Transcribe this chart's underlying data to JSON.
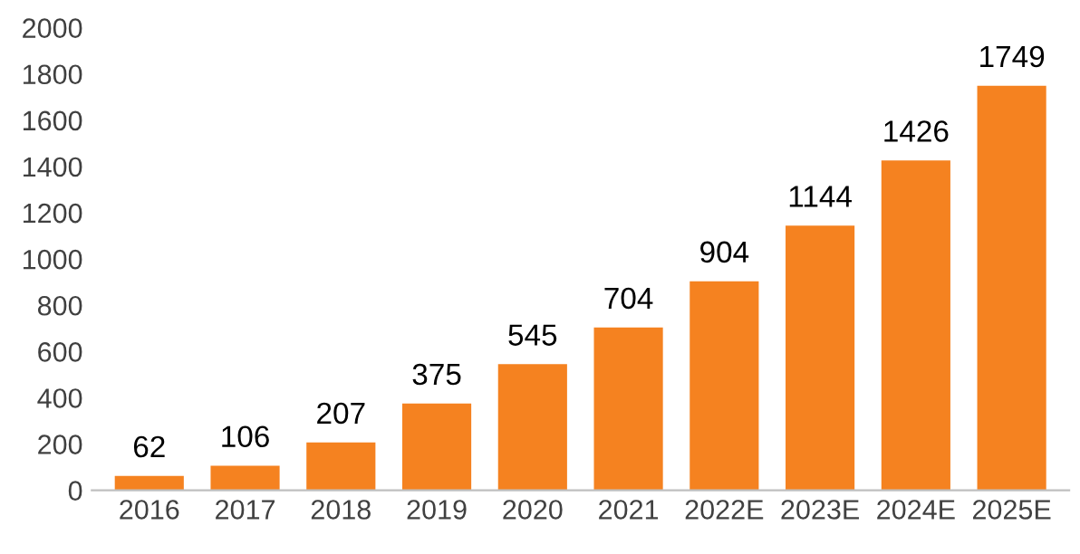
{
  "chart_data": {
    "type": "bar",
    "categories": [
      "2016",
      "2017",
      "2018",
      "2019",
      "2020",
      "2021",
      "2022E",
      "2023E",
      "2024E",
      "2025E"
    ],
    "values": [
      62,
      106,
      207,
      375,
      545,
      704,
      904,
      1144,
      1426,
      1749
    ],
    "color": "#f58220",
    "ylim": [
      0,
      2000
    ],
    "yticks": [
      0,
      200,
      400,
      600,
      800,
      1000,
      1200,
      1400,
      1600,
      1800,
      2000
    ],
    "data_labels": true,
    "grid": false,
    "legend": false
  }
}
